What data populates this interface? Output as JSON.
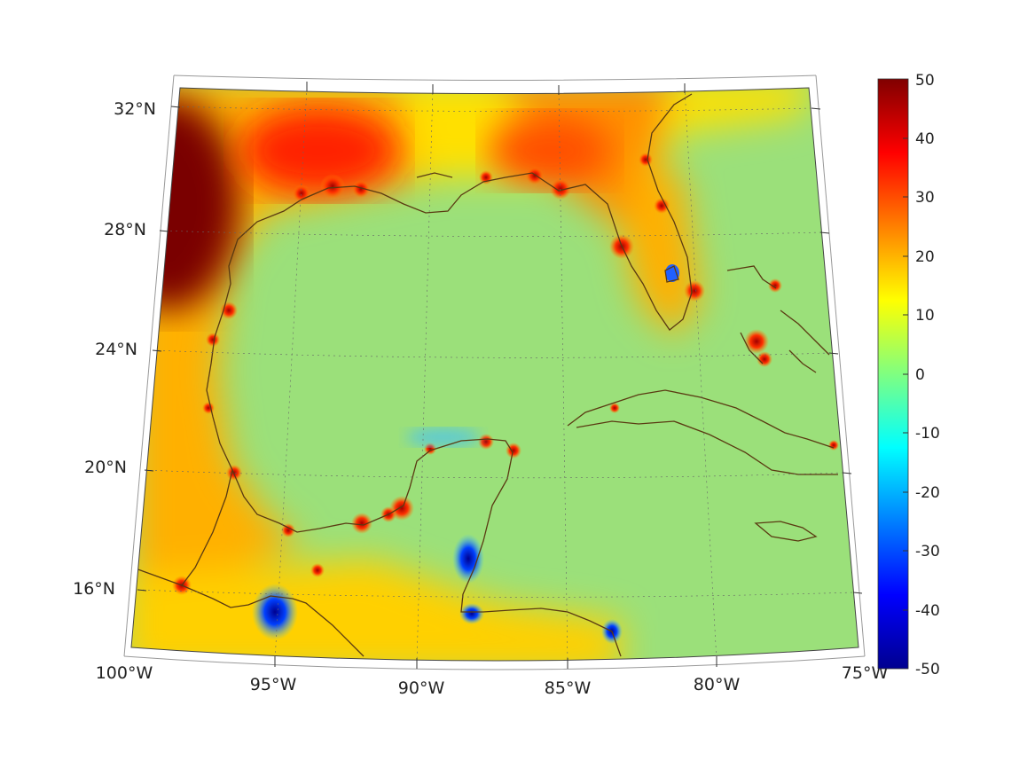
{
  "map": {
    "projection": "conic",
    "region": "Gulf of Mexico and Caribbean",
    "colormap": "jet",
    "lat_labels": [
      "16°N",
      "20°N",
      "24°N",
      "28°N",
      "32°N"
    ],
    "lon_labels": [
      "100°W",
      "95°W",
      "90°W",
      "85°W",
      "80°W",
      "75°W"
    ],
    "coastline_color": "#5a3a12",
    "grid_style": "dotted"
  },
  "colorbar": {
    "min": -50,
    "max": 50,
    "ticks": [
      "50",
      "40",
      "30",
      "20",
      "10",
      "0",
      "-10",
      "-20",
      "-30",
      "-40",
      "-50"
    ]
  }
}
